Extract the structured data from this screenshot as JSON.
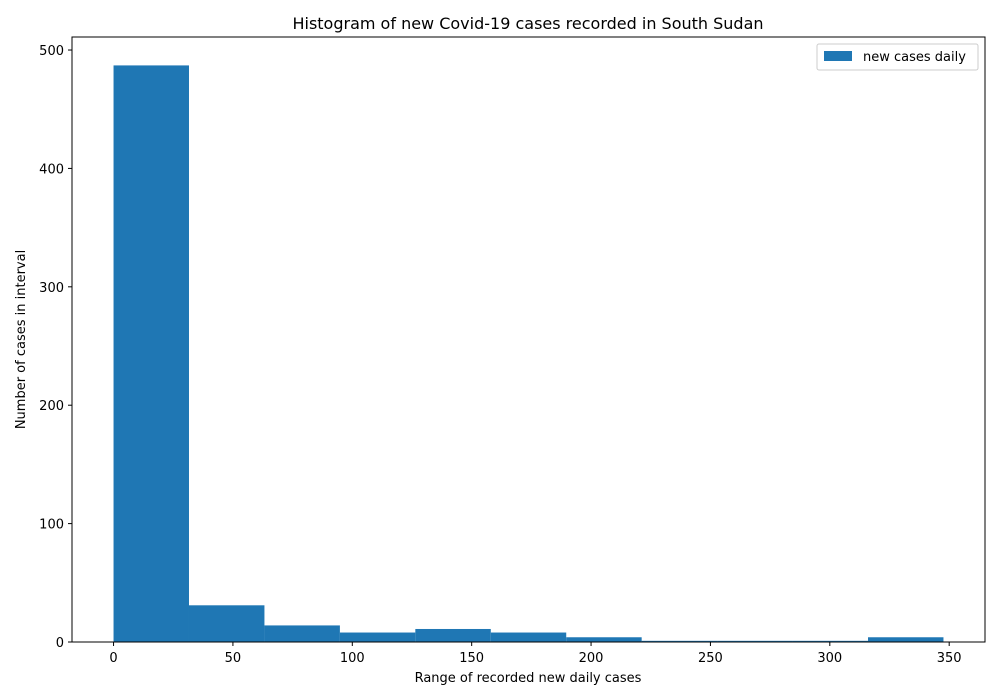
{
  "chart_data": {
    "type": "bar",
    "title": "Histogram of new Covid-19 cases recorded in South Sudan",
    "xlabel": "Range of recorded new daily cases",
    "ylabel": "Number of cases in interval",
    "bin_edges": [
      0,
      31.6,
      63.2,
      94.8,
      126.4,
      158.0,
      189.6,
      221.2,
      252.8,
      284.4,
      316.0,
      347.6
    ],
    "values": [
      487,
      31,
      14,
      8,
      11,
      8,
      4,
      1,
      1,
      1,
      4
    ],
    "xlim": [
      -17.4,
      365.0
    ],
    "ylim": [
      0,
      511
    ],
    "xticks": [
      0,
      50,
      100,
      150,
      200,
      250,
      300,
      350
    ],
    "yticks": [
      0,
      100,
      200,
      300,
      400,
      500
    ],
    "grid": false,
    "legend": {
      "placement": "top-right",
      "entries": [
        {
          "label": "new cases daily",
          "color": "#1f77b4"
        }
      ]
    },
    "bar_color": "#1f77b4"
  }
}
